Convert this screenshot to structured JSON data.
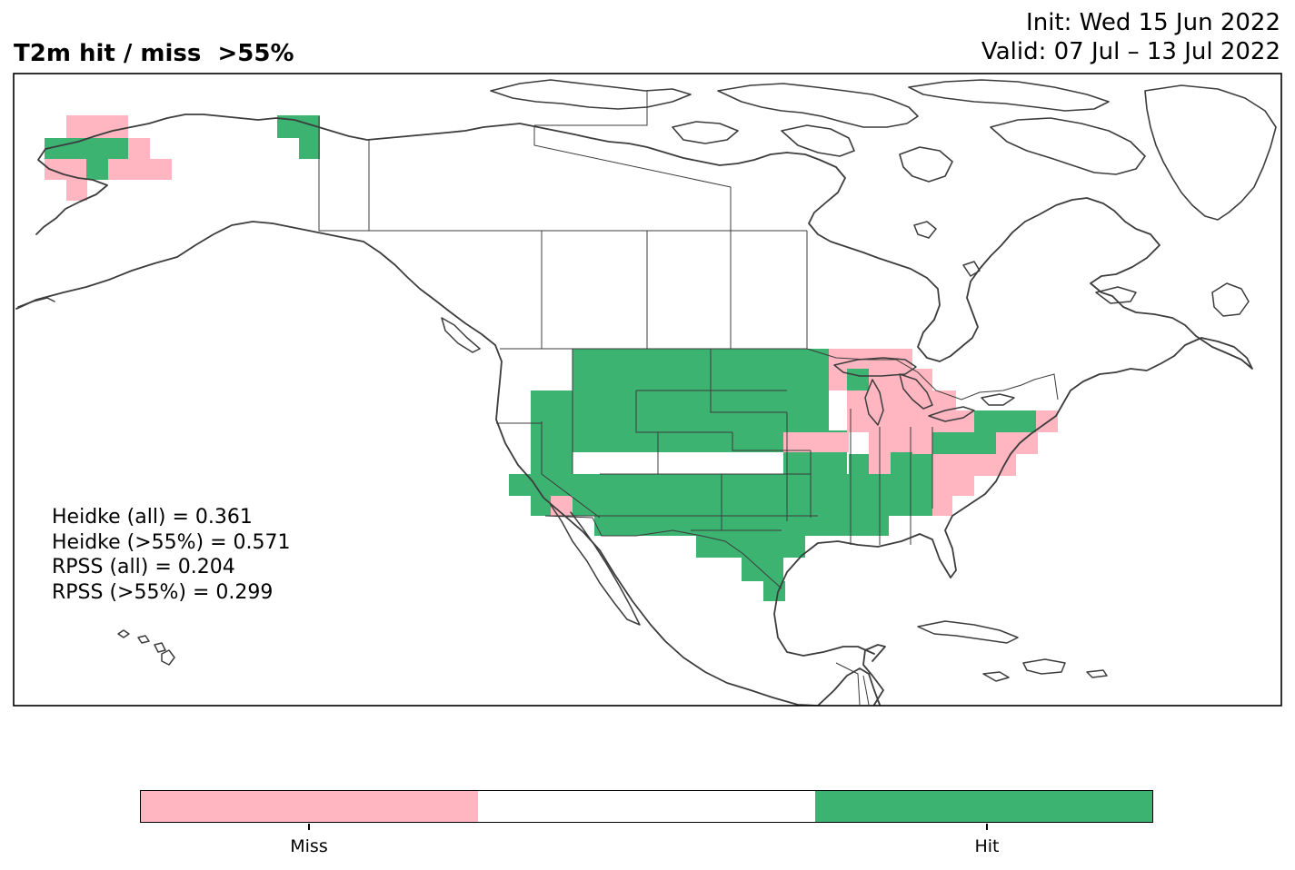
{
  "header": {
    "title": "T2m hit / miss  >55%",
    "init": "Init: Wed 15 Jun 2022",
    "valid": "Valid: 07 Jul – 13 Jul 2022"
  },
  "stats": [
    "Heidke (all) = 0.361",
    "Heidke (>55%) = 0.571",
    "RPSS (all) = 0.204",
    "RPSS (>55%) = 0.299"
  ],
  "legend": {
    "categories": [
      "Miss",
      "",
      "Hit"
    ],
    "colors": {
      "miss": "#ffb6c1",
      "neutral": "#ffffff",
      "hit": "#3cb371"
    },
    "tick_labels": [
      "Miss",
      "Hit"
    ]
  },
  "map": {
    "region": "North America",
    "projection": "lat-lon",
    "line_color": "#3c3c3c",
    "values": {
      "miss": 0,
      "neutral": 1,
      "hit": 2
    }
  }
}
